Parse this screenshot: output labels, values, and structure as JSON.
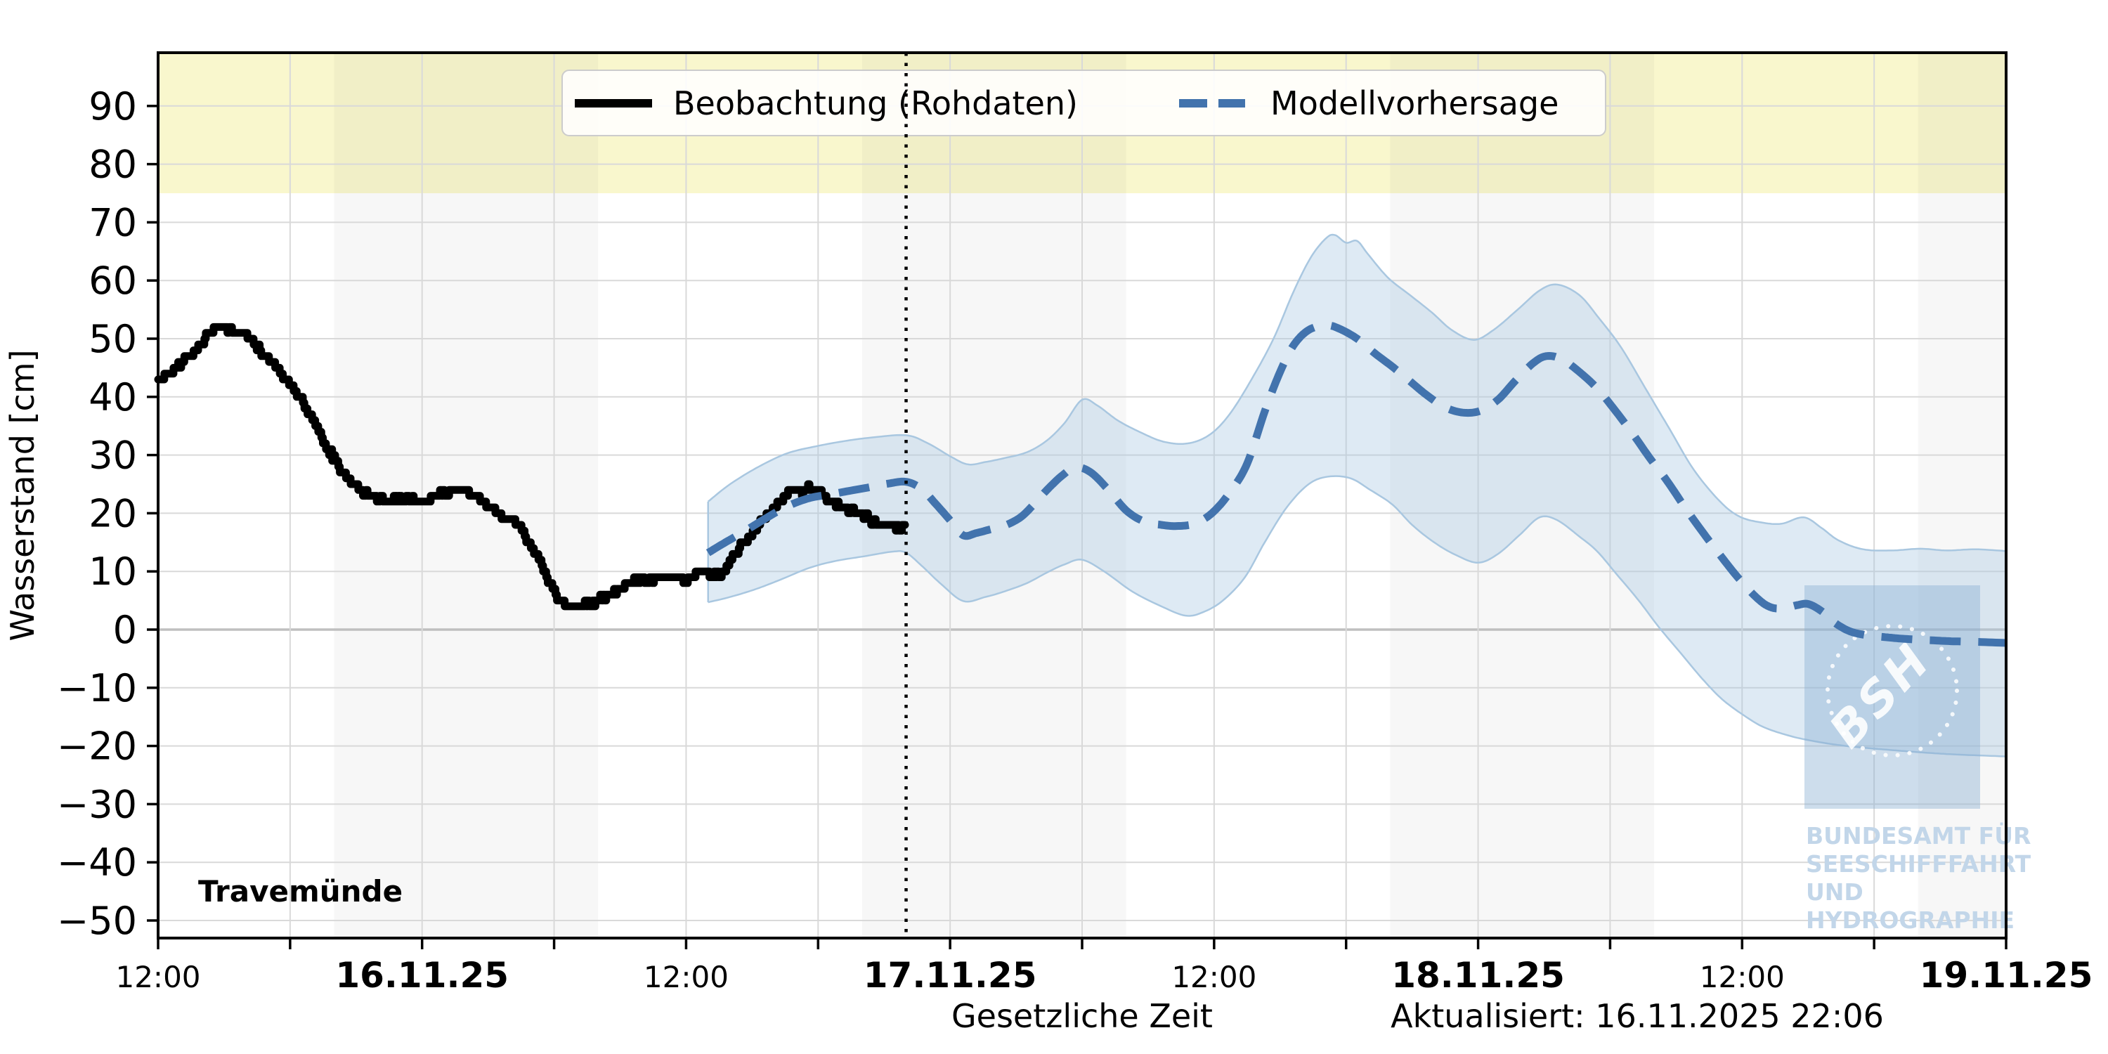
{
  "chart_data": {
    "type": "line",
    "title": "",
    "station": "Travemünde",
    "ylabel": "Wasserstand [cm]",
    "xlabel": "Gesetzliche Zeit",
    "updated": "Aktualisiert: 16.11.2025 22:06",
    "ylim": [
      -53,
      99
    ],
    "x_range_hours": [
      0,
      84
    ],
    "x_axis_start": "15.11.2025 12:00",
    "y_ticks": [
      90,
      80,
      70,
      60,
      50,
      40,
      30,
      20,
      10,
      0,
      -10,
      -20,
      -30,
      -40,
      -50
    ],
    "x_ticks": [
      {
        "h": 0,
        "label": "12:00",
        "bold": false
      },
      {
        "h": 6,
        "label": "",
        "bold": false
      },
      {
        "h": 12,
        "label": "16.11.25",
        "bold": true
      },
      {
        "h": 18,
        "label": "",
        "bold": false
      },
      {
        "h": 24,
        "label": "12:00",
        "bold": false
      },
      {
        "h": 30,
        "label": "",
        "bold": false
      },
      {
        "h": 36,
        "label": "17.11.25",
        "bold": true
      },
      {
        "h": 42,
        "label": "",
        "bold": false
      },
      {
        "h": 48,
        "label": "12:00",
        "bold": false
      },
      {
        "h": 54,
        "label": "",
        "bold": false
      },
      {
        "h": 60,
        "label": "18.11.25",
        "bold": true
      },
      {
        "h": 66,
        "label": "",
        "bold": false
      },
      {
        "h": 72,
        "label": "12:00",
        "bold": false
      },
      {
        "h": 78,
        "label": "",
        "bold": false
      },
      {
        "h": 84,
        "label": "19.11.25",
        "bold": true
      }
    ],
    "warning_band": {
      "from_cm": 75,
      "color": "#f9f7cd"
    },
    "night_bands_hours": [
      [
        8,
        20
      ],
      [
        32,
        44
      ],
      [
        56,
        68
      ],
      [
        80,
        84
      ]
    ],
    "forecast_start_hour": 34,
    "colors": {
      "observation": "#000000",
      "forecast": "#4273ad",
      "band_fill": "rgba(167,199,226,0.38)",
      "band_edge": "#a9c7e0",
      "grid": "#d9d9d9",
      "zero_line": "#bfbfbf",
      "night_shade": "rgba(60,60,60,0.045)"
    },
    "legend": [
      {
        "label": "Beobachtung (Rohdaten)",
        "style": "solid",
        "color": "#000000"
      },
      {
        "label": "Modellvorhersage",
        "style": "dashed",
        "color": "#4273ad"
      }
    ],
    "series": [
      {
        "name": "Beobachtung (Rohdaten)",
        "style": "solid",
        "points": [
          [
            0,
            43
          ],
          [
            0.5,
            44
          ],
          [
            1,
            45.5
          ],
          [
            1.5,
            47.5
          ],
          [
            2,
            49.5
          ],
          [
            2.3,
            51
          ],
          [
            2.6,
            51.8
          ],
          [
            3,
            52
          ],
          [
            3.5,
            51.5
          ],
          [
            4,
            50.5
          ],
          [
            4.5,
            48.5
          ],
          [
            5,
            46.5
          ],
          [
            5.5,
            44.5
          ],
          [
            5.9,
            42.5
          ],
          [
            6.4,
            40
          ],
          [
            6.9,
            37
          ],
          [
            7.4,
            33.5
          ],
          [
            7.8,
            30.5
          ],
          [
            8.3,
            27.5
          ],
          [
            8.8,
            25
          ],
          [
            9.3,
            23.5
          ],
          [
            9.8,
            22.5
          ],
          [
            10.2,
            22.2
          ],
          [
            10.7,
            22.4
          ],
          [
            11.2,
            22.6
          ],
          [
            11.7,
            22.3
          ],
          [
            12.2,
            22.2
          ],
          [
            12.6,
            22.8
          ],
          [
            13.1,
            23.6
          ],
          [
            13.6,
            24.2
          ],
          [
            14.1,
            23.8
          ],
          [
            14.5,
            22.5
          ],
          [
            15,
            21
          ],
          [
            15.5,
            19.8
          ],
          [
            16,
            19
          ],
          [
            16.5,
            17
          ],
          [
            16.9,
            14.5
          ],
          [
            17.4,
            11.5
          ],
          [
            17.7,
            8.5
          ],
          [
            18.1,
            5.5
          ],
          [
            18.4,
            4.3
          ],
          [
            18.9,
            4.1
          ],
          [
            19.3,
            4.2
          ],
          [
            19.8,
            4.4
          ],
          [
            20.1,
            5.3
          ],
          [
            20.6,
            6.2
          ],
          [
            21.1,
            7.6
          ],
          [
            21.6,
            8.4
          ],
          [
            22.1,
            8.6
          ],
          [
            22.5,
            8.5
          ],
          [
            23,
            8.7
          ],
          [
            23.3,
            8.9
          ],
          [
            23.7,
            9.1
          ],
          [
            24,
            8.3
          ],
          [
            24.5,
            9.7
          ],
          [
            24.8,
            10.3
          ],
          [
            25.1,
            9.4
          ],
          [
            25.4,
            9.1
          ],
          [
            25.7,
            10
          ],
          [
            26.2,
            13
          ],
          [
            26.7,
            15.5
          ],
          [
            27.2,
            17.5
          ],
          [
            27.7,
            19.5
          ],
          [
            28,
            20.8
          ],
          [
            28.3,
            22.3
          ],
          [
            28.6,
            23.4
          ],
          [
            28.9,
            24.2
          ],
          [
            29.3,
            23.8
          ],
          [
            29.6,
            24.3
          ],
          [
            29.9,
            23.9
          ],
          [
            30.2,
            23.2
          ],
          [
            30.5,
            22.2
          ],
          [
            31,
            21.2
          ],
          [
            31.5,
            20.4
          ],
          [
            32,
            19.6
          ],
          [
            32.5,
            18.5
          ],
          [
            32.9,
            18
          ],
          [
            33.3,
            17.7
          ],
          [
            33.7,
            17.6
          ],
          [
            34,
            18.2
          ]
        ]
      },
      {
        "name": "Modellvorhersage",
        "style": "dashed",
        "points": [
          [
            25,
            13.2
          ],
          [
            25.7,
            14.8
          ],
          [
            26.7,
            17
          ],
          [
            27.7,
            19.3
          ],
          [
            28.6,
            21.2
          ],
          [
            29.6,
            22.6
          ],
          [
            30.5,
            23.2
          ],
          [
            31.5,
            23.9
          ],
          [
            32.4,
            24.5
          ],
          [
            33.2,
            25.1
          ],
          [
            34,
            25.4
          ],
          [
            34.7,
            24.2
          ],
          [
            35.3,
            21.8
          ],
          [
            36,
            18.8
          ],
          [
            36.6,
            16.2
          ],
          [
            37.2,
            16.6
          ],
          [
            37.9,
            17.3
          ],
          [
            38.5,
            17.9
          ],
          [
            39.2,
            19.3
          ],
          [
            39.8,
            21.5
          ],
          [
            40.4,
            24
          ],
          [
            41.1,
            26.5
          ],
          [
            41.7,
            27.9
          ],
          [
            42.4,
            27
          ],
          [
            43.2,
            24
          ],
          [
            44,
            20.5
          ],
          [
            44.8,
            18.6
          ],
          [
            45.6,
            18
          ],
          [
            46.3,
            17.8
          ],
          [
            47.1,
            18.2
          ],
          [
            47.9,
            20
          ],
          [
            48.7,
            23.5
          ],
          [
            49.5,
            28.5
          ],
          [
            50.3,
            37.5
          ],
          [
            51,
            44.3
          ],
          [
            51.6,
            48.8
          ],
          [
            52.3,
            51.5
          ],
          [
            53.1,
            52.3
          ],
          [
            53.7,
            51.7
          ],
          [
            54.5,
            50
          ],
          [
            55.3,
            47.5
          ],
          [
            56.1,
            45.2
          ],
          [
            56.9,
            42.7
          ],
          [
            57.7,
            40.2
          ],
          [
            58.5,
            38.2
          ],
          [
            59.3,
            37.3
          ],
          [
            60.1,
            37.6
          ],
          [
            60.9,
            39.5
          ],
          [
            61.7,
            42.8
          ],
          [
            62.5,
            45.8
          ],
          [
            63.1,
            47
          ],
          [
            63.8,
            46.5
          ],
          [
            64.6,
            44.3
          ],
          [
            65.4,
            41.5
          ],
          [
            66.2,
            37.8
          ],
          [
            67,
            33.8
          ],
          [
            67.8,
            29.5
          ],
          [
            68.6,
            25.5
          ],
          [
            69.4,
            21
          ],
          [
            70.2,
            16.8
          ],
          [
            71,
            12.8
          ],
          [
            71.8,
            9
          ],
          [
            72.6,
            5.7
          ],
          [
            73.2,
            4
          ],
          [
            73.8,
            3.6
          ],
          [
            74.5,
            4.2
          ],
          [
            75,
            4.4
          ],
          [
            75.6,
            3.2
          ],
          [
            76.2,
            1.2
          ],
          [
            76.9,
            -0.3
          ],
          [
            77.7,
            -1
          ],
          [
            78.5,
            -1.3
          ],
          [
            79.4,
            -1.6
          ],
          [
            80.4,
            -1.8
          ],
          [
            81.5,
            -2
          ],
          [
            82.6,
            -2.1
          ],
          [
            84,
            -2.3
          ]
        ]
      },
      {
        "name": "Vorhersage Obergrenze",
        "style": "band-edge",
        "points": [
          [
            25,
            22
          ],
          [
            26,
            25
          ],
          [
            27.3,
            28
          ],
          [
            28.6,
            30.3
          ],
          [
            29.9,
            31.5
          ],
          [
            31.2,
            32.4
          ],
          [
            32.4,
            33
          ],
          [
            34,
            33.4
          ],
          [
            35,
            32
          ],
          [
            36,
            29.8
          ],
          [
            36.8,
            28.4
          ],
          [
            37.6,
            28.8
          ],
          [
            38.5,
            29.5
          ],
          [
            39.5,
            30.5
          ],
          [
            40.4,
            32.5
          ],
          [
            41.2,
            35.5
          ],
          [
            42,
            39.5
          ],
          [
            42.7,
            38.5
          ],
          [
            43.6,
            36
          ],
          [
            44.6,
            34
          ],
          [
            45.7,
            32.3
          ],
          [
            46.8,
            32
          ],
          [
            47.8,
            33.5
          ],
          [
            48.7,
            37
          ],
          [
            49.7,
            43
          ],
          [
            50.7,
            50
          ],
          [
            51.6,
            58
          ],
          [
            52.4,
            64
          ],
          [
            53.1,
            67.3
          ],
          [
            53.5,
            67.8
          ],
          [
            54,
            66.5
          ],
          [
            54.5,
            66.8
          ],
          [
            55,
            64.5
          ],
          [
            55.9,
            60.5
          ],
          [
            56.9,
            57.5
          ],
          [
            57.9,
            54.5
          ],
          [
            58.8,
            51.5
          ],
          [
            59.8,
            49.8
          ],
          [
            60.7,
            51.5
          ],
          [
            61.8,
            55
          ],
          [
            62.8,
            58.3
          ],
          [
            63.6,
            59.3
          ],
          [
            64.6,
            57.5
          ],
          [
            65.5,
            53.5
          ],
          [
            66.5,
            48.5
          ],
          [
            67.6,
            41.5
          ],
          [
            68.7,
            34.5
          ],
          [
            69.8,
            27.5
          ],
          [
            71,
            22
          ],
          [
            71.9,
            19.4
          ],
          [
            72.9,
            18.4
          ],
          [
            73.8,
            18.2
          ],
          [
            74.8,
            19.3
          ],
          [
            75.6,
            17.5
          ],
          [
            76.4,
            15.3
          ],
          [
            77.5,
            13.8
          ],
          [
            78.8,
            13.6
          ],
          [
            80.1,
            13.9
          ],
          [
            81.3,
            13.6
          ],
          [
            82.6,
            13.8
          ],
          [
            84,
            13.5
          ]
        ]
      },
      {
        "name": "Vorhersage Untergrenze",
        "style": "band-edge",
        "points": [
          [
            25,
            4.7
          ],
          [
            26,
            5.6
          ],
          [
            27.2,
            7
          ],
          [
            28.3,
            8.6
          ],
          [
            29.6,
            10.6
          ],
          [
            30.8,
            11.8
          ],
          [
            32.1,
            12.6
          ],
          [
            33.4,
            13.4
          ],
          [
            34,
            13.2
          ],
          [
            34.7,
            11
          ],
          [
            35.6,
            7.8
          ],
          [
            36.6,
            4.9
          ],
          [
            37.6,
            5.6
          ],
          [
            38.5,
            6.6
          ],
          [
            39.5,
            8
          ],
          [
            40.4,
            9.8
          ],
          [
            41.2,
            11.2
          ],
          [
            42,
            12
          ],
          [
            43,
            10
          ],
          [
            44.3,
            6.5
          ],
          [
            45.6,
            4
          ],
          [
            46.7,
            2.4
          ],
          [
            47.5,
            3
          ],
          [
            48.4,
            5
          ],
          [
            49.4,
            9
          ],
          [
            50.3,
            15
          ],
          [
            51.3,
            21
          ],
          [
            52.3,
            25
          ],
          [
            53.2,
            26.3
          ],
          [
            54.2,
            26
          ],
          [
            55.1,
            24
          ],
          [
            56.1,
            21.5
          ],
          [
            57,
            18
          ],
          [
            58,
            15
          ],
          [
            59,
            12.8
          ],
          [
            60,
            11.5
          ],
          [
            60.9,
            13
          ],
          [
            61.9,
            16.3
          ],
          [
            62.8,
            19.3
          ],
          [
            63.6,
            18.8
          ],
          [
            64.6,
            16
          ],
          [
            65.4,
            13.5
          ],
          [
            66.3,
            9.5
          ],
          [
            67.3,
            5
          ],
          [
            68.2,
            0.5
          ],
          [
            69.2,
            -4
          ],
          [
            70.2,
            -8.5
          ],
          [
            71.1,
            -12
          ],
          [
            72.1,
            -14.8
          ],
          [
            73,
            -16.8
          ],
          [
            74.2,
            -18.3
          ],
          [
            75.3,
            -19.2
          ],
          [
            76.5,
            -19.9
          ],
          [
            77.8,
            -20.4
          ],
          [
            79.1,
            -20.8
          ],
          [
            80.5,
            -21.2
          ],
          [
            81.9,
            -21.5
          ],
          [
            84,
            -21.8
          ]
        ]
      }
    ]
  },
  "logo": {
    "bsh": "BSH",
    "lines": [
      "BUNDESAMT FÜR",
      "SEESCHIFFFAHRT",
      "UND",
      "HYDROGRAPHIE"
    ]
  }
}
